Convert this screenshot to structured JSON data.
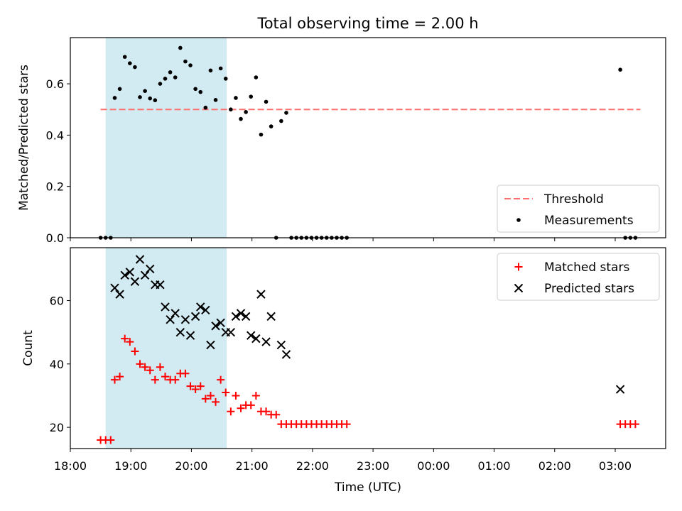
{
  "figure": {
    "title": "Total observing time = 2.00 h"
  },
  "chart_data": [
    {
      "type": "scatter",
      "ylabel": "Matched/Predicted stars",
      "ylim": [
        0,
        0.78
      ],
      "yticks": [
        0.0,
        0.2,
        0.4,
        0.6
      ],
      "ytick_labels": [
        "0.0",
        "0.2",
        "0.4",
        "0.6"
      ],
      "xlim": [
        "18:00",
        "03:50"
      ],
      "shaded_span": [
        "18:35",
        "20:35"
      ],
      "shaded_color": "#add8e6",
      "threshold": {
        "name": "Threshold",
        "value": 0.5,
        "x_start": "18:30",
        "x_end": "03:25",
        "color": "#ff6f6f",
        "style": "dashed"
      },
      "legend": {
        "position": "lower right",
        "entries": [
          "Threshold",
          "Measurements"
        ]
      },
      "series": [
        {
          "name": "Measurements",
          "color": "#000000",
          "marker": "dot",
          "points": [
            [
              "18:30",
              0.0
            ],
            [
              "18:35",
              0.0
            ],
            [
              "18:40",
              0.0
            ],
            [
              "18:44",
              0.545
            ],
            [
              "18:49",
              0.58
            ],
            [
              "18:54",
              0.705
            ],
            [
              "18:59",
              0.68
            ],
            [
              "19:04",
              0.665
            ],
            [
              "19:09",
              0.548
            ],
            [
              "19:14",
              0.572
            ],
            [
              "19:19",
              0.543
            ],
            [
              "19:24",
              0.536
            ],
            [
              "19:29",
              0.6
            ],
            [
              "19:34",
              0.62
            ],
            [
              "19:39",
              0.645
            ],
            [
              "19:44",
              0.625
            ],
            [
              "19:49",
              0.74
            ],
            [
              "19:54",
              0.687
            ],
            [
              "19:59",
              0.672
            ],
            [
              "20:04",
              0.58
            ],
            [
              "20:09",
              0.568
            ],
            [
              "20:14",
              0.507
            ],
            [
              "20:19",
              0.652
            ],
            [
              "20:24",
              0.537
            ],
            [
              "20:29",
              0.66
            ],
            [
              "20:34",
              0.62
            ],
            [
              "20:39",
              0.5
            ],
            [
              "20:44",
              0.545
            ],
            [
              "20:49",
              0.463
            ],
            [
              "20:54",
              0.49
            ],
            [
              "20:59",
              0.55
            ],
            [
              "21:04",
              0.625
            ],
            [
              "21:09",
              0.402
            ],
            [
              "21:14",
              0.53
            ],
            [
              "21:19",
              0.434
            ],
            [
              "21:24",
              0.0
            ],
            [
              "21:29",
              0.455
            ],
            [
              "21:34",
              0.487
            ],
            [
              "21:39",
              0.0
            ],
            [
              "21:44",
              0.0
            ],
            [
              "21:49",
              0.0
            ],
            [
              "21:54",
              0.0
            ],
            [
              "21:59",
              0.0
            ],
            [
              "22:04",
              0.0
            ],
            [
              "22:09",
              0.0
            ],
            [
              "22:14",
              0.0
            ],
            [
              "22:19",
              0.0
            ],
            [
              "22:24",
              0.0
            ],
            [
              "22:29",
              0.0
            ],
            [
              "22:34",
              0.0
            ],
            [
              "03:05",
              0.655
            ],
            [
              "03:10",
              0.0
            ],
            [
              "03:15",
              0.0
            ],
            [
              "03:20",
              0.0
            ]
          ]
        }
      ]
    },
    {
      "type": "scatter",
      "xlabel": "Time (UTC)",
      "ylabel": "Count",
      "ylim": [
        13.3,
        76.7
      ],
      "yticks": [
        20,
        40,
        60
      ],
      "ytick_labels": [
        "20",
        "40",
        "60"
      ],
      "xlim": [
        "18:00",
        "03:50"
      ],
      "xtick_labels": [
        "18:00",
        "19:00",
        "20:00",
        "21:00",
        "22:00",
        "23:00",
        "00:00",
        "01:00",
        "02:00",
        "03:00"
      ],
      "shaded_span": [
        "18:35",
        "20:35"
      ],
      "shaded_color": "#add8e6",
      "legend": {
        "position": "upper right",
        "entries": [
          "Matched stars",
          "Predicted stars"
        ]
      },
      "series": [
        {
          "name": "Matched stars",
          "color": "#ff0000",
          "marker": "plus",
          "points": [
            [
              "18:30",
              16
            ],
            [
              "18:35",
              16
            ],
            [
              "18:40",
              16
            ],
            [
              "18:44",
              35
            ],
            [
              "18:49",
              36
            ],
            [
              "18:54",
              48
            ],
            [
              "18:59",
              47
            ],
            [
              "19:04",
              44
            ],
            [
              "19:09",
              40
            ],
            [
              "19:14",
              39
            ],
            [
              "19:19",
              38
            ],
            [
              "19:24",
              35
            ],
            [
              "19:29",
              39
            ],
            [
              "19:34",
              36
            ],
            [
              "19:39",
              35
            ],
            [
              "19:44",
              35
            ],
            [
              "19:49",
              37
            ],
            [
              "19:54",
              37
            ],
            [
              "19:59",
              33
            ],
            [
              "20:04",
              32
            ],
            [
              "20:09",
              33
            ],
            [
              "20:14",
              29
            ],
            [
              "20:19",
              30
            ],
            [
              "20:24",
              28
            ],
            [
              "20:29",
              35
            ],
            [
              "20:34",
              31
            ],
            [
              "20:39",
              25
            ],
            [
              "20:44",
              30
            ],
            [
              "20:49",
              26
            ],
            [
              "20:54",
              27
            ],
            [
              "20:59",
              27
            ],
            [
              "21:04",
              30
            ],
            [
              "21:09",
              25
            ],
            [
              "21:14",
              25
            ],
            [
              "21:19",
              24
            ],
            [
              "21:24",
              24
            ],
            [
              "21:29",
              21
            ],
            [
              "21:34",
              21
            ],
            [
              "21:39",
              21
            ],
            [
              "21:44",
              21
            ],
            [
              "21:49",
              21
            ],
            [
              "21:54",
              21
            ],
            [
              "21:59",
              21
            ],
            [
              "22:04",
              21
            ],
            [
              "22:09",
              21
            ],
            [
              "22:14",
              21
            ],
            [
              "22:19",
              21
            ],
            [
              "22:24",
              21
            ],
            [
              "22:29",
              21
            ],
            [
              "22:34",
              21
            ],
            [
              "03:05",
              21
            ],
            [
              "03:10",
              21
            ],
            [
              "03:15",
              21
            ],
            [
              "03:20",
              21
            ]
          ]
        },
        {
          "name": "Predicted stars",
          "color": "#000000",
          "marker": "x",
          "points": [
            [
              "18:44",
              64
            ],
            [
              "18:49",
              62
            ],
            [
              "18:54",
              68
            ],
            [
              "18:59",
              69
            ],
            [
              "19:04",
              66
            ],
            [
              "19:09",
              73
            ],
            [
              "19:14",
              68
            ],
            [
              "19:19",
              70
            ],
            [
              "19:24",
              65
            ],
            [
              "19:29",
              65
            ],
            [
              "19:34",
              58
            ],
            [
              "19:39",
              54
            ],
            [
              "19:44",
              56
            ],
            [
              "19:49",
              50
            ],
            [
              "19:54",
              54
            ],
            [
              "19:59",
              49
            ],
            [
              "20:04",
              55
            ],
            [
              "20:09",
              58
            ],
            [
              "20:14",
              57
            ],
            [
              "20:19",
              46
            ],
            [
              "20:24",
              52
            ],
            [
              "20:29",
              53
            ],
            [
              "20:34",
              50
            ],
            [
              "20:39",
              50
            ],
            [
              "20:44",
              55
            ],
            [
              "20:49",
              56
            ],
            [
              "20:54",
              55
            ],
            [
              "20:59",
              49
            ],
            [
              "21:04",
              48
            ],
            [
              "21:09",
              62
            ],
            [
              "21:14",
              47
            ],
            [
              "21:19",
              55
            ],
            [
              "21:29",
              46
            ],
            [
              "21:34",
              43
            ],
            [
              "03:05",
              32
            ]
          ]
        }
      ]
    }
  ]
}
